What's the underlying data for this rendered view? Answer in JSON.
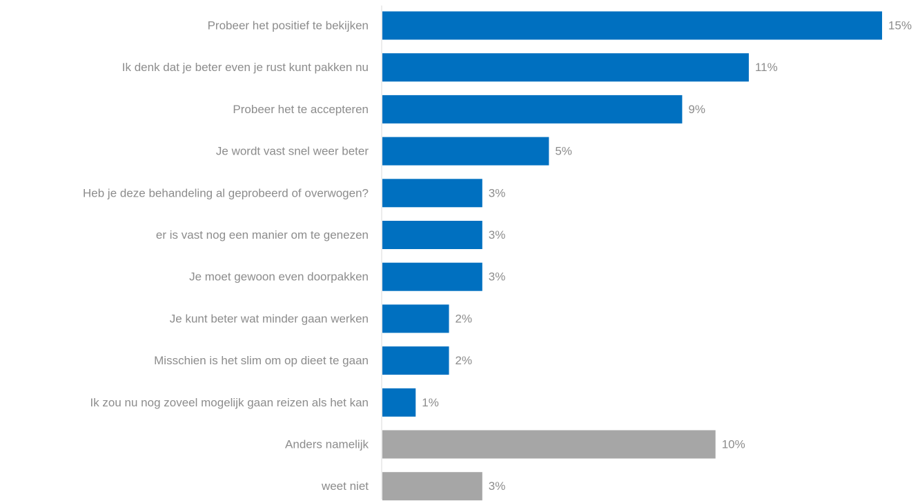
{
  "chart_data": {
    "type": "bar",
    "orientation": "horizontal",
    "title": "",
    "xlabel": "",
    "ylabel": "",
    "grid": false,
    "legend": "none",
    "categories": [
      "Probeer het positief te bekijken",
      "Ik denk dat je beter even je rust kunt pakken nu",
      "Probeer het te accepteren",
      "Je wordt vast snel weer beter",
      "Heb je deze behandeling al geprobeerd of overwogen?",
      "er is vast nog een manier om te genezen",
      "Je moet gewoon even doorpakken",
      "Je kunt beter wat minder gaan werken",
      "Misschien is het slim om op dieet te gaan",
      "Ik zou nu nog zoveel mogelijk gaan reizen als het kan",
      "Anders namelijk",
      "weet niet"
    ],
    "values": [
      15,
      11,
      9,
      5,
      3,
      3,
      3,
      2,
      2,
      1,
      10,
      3
    ],
    "value_labels": [
      "15%",
      "11%",
      "9%",
      "5%",
      "3%",
      "3%",
      "3%",
      "2%",
      "2%",
      "1%",
      "10%",
      "3%"
    ],
    "value_unit": "%",
    "bar_colors": [
      "#0070c0",
      "#0070c0",
      "#0070c0",
      "#0070c0",
      "#0070c0",
      "#0070c0",
      "#0070c0",
      "#0070c0",
      "#0070c0",
      "#0070c0",
      "#a6a6a6",
      "#a6a6a6"
    ],
    "xlim": [
      0,
      15.5
    ]
  }
}
